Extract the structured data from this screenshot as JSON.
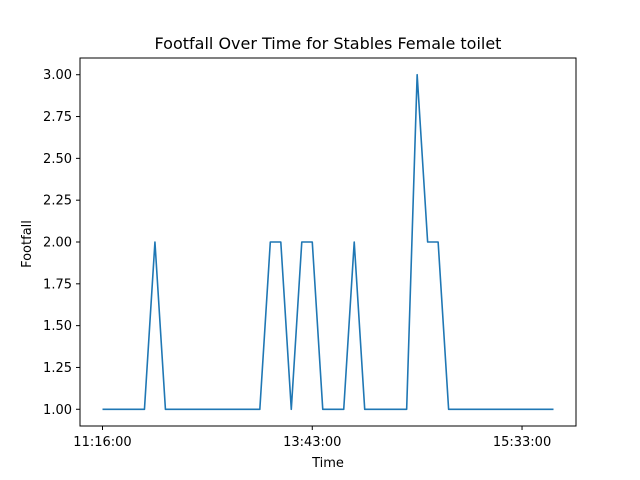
{
  "chart_data": {
    "type": "line",
    "title": "Footfall Over Time for Stables Female toilet",
    "xlabel": "Time",
    "ylabel": "Footfall",
    "x_tick_labels": [
      "11:16:00",
      "13:43:00",
      "15:33:00"
    ],
    "y_ticks": [
      1.0,
      1.25,
      1.5,
      1.75,
      2.0,
      2.25,
      2.5,
      2.75,
      3.0
    ],
    "y_tick_labels": [
      "1.00",
      "1.25",
      "1.50",
      "1.75",
      "2.00",
      "2.25",
      "2.50",
      "2.75",
      "3.00"
    ],
    "ylim": [
      0.9,
      3.1
    ],
    "grid": false,
    "series": [
      {
        "color": "#1f77b4",
        "values": [
          1,
          1,
          1,
          1,
          1,
          2,
          1,
          1,
          1,
          1,
          1,
          1,
          1,
          1,
          1,
          1,
          2,
          2,
          1,
          2,
          2,
          1,
          1,
          1,
          2,
          1,
          1,
          1,
          1,
          1,
          3,
          2,
          2,
          1,
          1,
          1,
          1,
          1,
          1,
          1,
          1,
          1,
          1,
          1
        ]
      }
    ]
  }
}
